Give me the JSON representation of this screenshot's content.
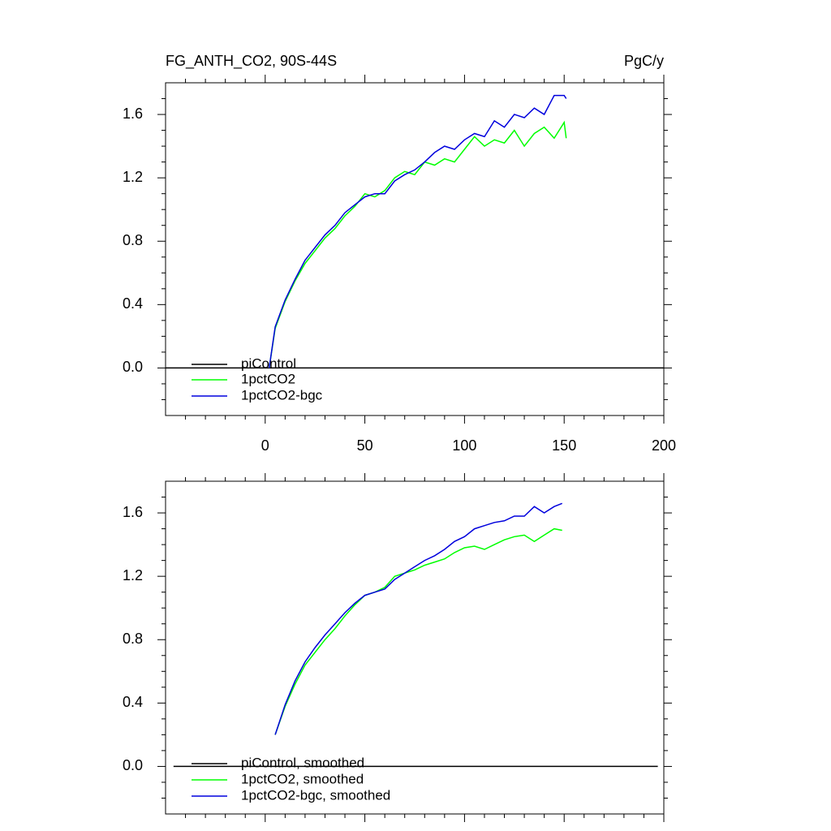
{
  "chart_data": [
    {
      "type": "line",
      "title": "FG_ANTH_CO2, 90S-44S",
      "units": "PgC/y",
      "xlim": [
        -50,
        200
      ],
      "xticks": [
        0,
        50,
        100,
        150,
        200
      ],
      "show_xtick_labels": true,
      "ylim": [
        -0.3,
        1.8
      ],
      "yticks": [
        {
          "value": 0,
          "label": "0.0"
        },
        0.4,
        0.8,
        1.2,
        1.6
      ],
      "legend": "lower left",
      "series": [
        {
          "name": "piControl",
          "color": "#000000",
          "x": [
            -50,
            200
          ],
          "values": [
            0,
            0
          ]
        },
        {
          "name": "1pctCO2",
          "color": "#00ff00",
          "x": [
            2,
            5,
            10,
            15,
            20,
            25,
            30,
            35,
            40,
            45,
            50,
            55,
            60,
            65,
            70,
            75,
            80,
            85,
            90,
            95,
            100,
            105,
            110,
            115,
            120,
            125,
            130,
            135,
            140,
            145,
            150,
            151
          ],
          "values": [
            0.0,
            0.25,
            0.42,
            0.55,
            0.66,
            0.74,
            0.82,
            0.88,
            0.96,
            1.02,
            1.1,
            1.08,
            1.12,
            1.2,
            1.24,
            1.22,
            1.3,
            1.28,
            1.32,
            1.3,
            1.38,
            1.46,
            1.4,
            1.44,
            1.42,
            1.5,
            1.4,
            1.48,
            1.52,
            1.45,
            1.55,
            1.45
          ]
        },
        {
          "name": "1pctCO2-bgc",
          "color": "#0000dd",
          "x": [
            2,
            5,
            10,
            15,
            20,
            25,
            30,
            35,
            40,
            45,
            50,
            55,
            60,
            65,
            70,
            75,
            80,
            85,
            90,
            95,
            100,
            105,
            110,
            115,
            120,
            125,
            130,
            135,
            140,
            145,
            150,
            151
          ],
          "values": [
            0.0,
            0.26,
            0.43,
            0.56,
            0.68,
            0.76,
            0.84,
            0.9,
            0.98,
            1.03,
            1.08,
            1.1,
            1.1,
            1.18,
            1.22,
            1.25,
            1.3,
            1.36,
            1.4,
            1.38,
            1.44,
            1.48,
            1.46,
            1.56,
            1.52,
            1.6,
            1.58,
            1.64,
            1.6,
            1.72,
            1.72,
            1.7
          ]
        }
      ]
    },
    {
      "type": "line",
      "xlim": [
        -50,
        200
      ],
      "xticks": [
        0,
        50,
        100,
        150,
        200
      ],
      "show_xtick_labels": false,
      "ylim": [
        -0.3,
        1.8
      ],
      "yticks": [
        {
          "value": 0,
          "label": "0.0"
        },
        0.4,
        0.8,
        1.2,
        1.6
      ],
      "legend": "lower left",
      "series": [
        {
          "name": "piControl, smoothed",
          "color": "#000000",
          "x": [
            -46,
            197
          ],
          "values": [
            0,
            0
          ]
        },
        {
          "name": "1pctCO2, smoothed",
          "color": "#00ff00",
          "x": [
            5,
            10,
            15,
            20,
            25,
            30,
            35,
            40,
            45,
            50,
            55,
            60,
            65,
            70,
            75,
            80,
            85,
            90,
            95,
            100,
            105,
            110,
            115,
            120,
            125,
            130,
            135,
            140,
            145,
            149
          ],
          "values": [
            0.2,
            0.38,
            0.52,
            0.64,
            0.72,
            0.8,
            0.87,
            0.95,
            1.02,
            1.08,
            1.1,
            1.13,
            1.2,
            1.22,
            1.24,
            1.27,
            1.29,
            1.31,
            1.35,
            1.38,
            1.39,
            1.37,
            1.4,
            1.43,
            1.45,
            1.46,
            1.42,
            1.46,
            1.5,
            1.49
          ]
        },
        {
          "name": "1pctCO2-bgc, smoothed",
          "color": "#0000dd",
          "x": [
            5,
            10,
            15,
            20,
            25,
            30,
            35,
            40,
            45,
            50,
            55,
            60,
            65,
            70,
            75,
            80,
            85,
            90,
            95,
            100,
            105,
            110,
            115,
            120,
            125,
            130,
            135,
            140,
            145,
            149
          ],
          "values": [
            0.2,
            0.39,
            0.54,
            0.66,
            0.75,
            0.83,
            0.9,
            0.97,
            1.03,
            1.08,
            1.1,
            1.12,
            1.18,
            1.22,
            1.26,
            1.3,
            1.33,
            1.37,
            1.42,
            1.45,
            1.5,
            1.52,
            1.54,
            1.55,
            1.58,
            1.58,
            1.64,
            1.6,
            1.64,
            1.66
          ]
        }
      ]
    }
  ]
}
